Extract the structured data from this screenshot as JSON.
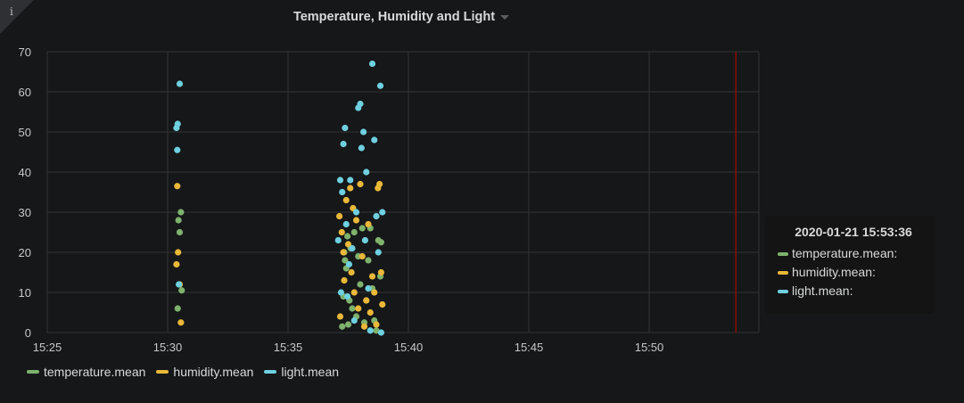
{
  "panel": {
    "title": "Temperature, Humidity and Light",
    "info_icon": "info-icon"
  },
  "colors": {
    "temperature": "#7eb26d",
    "humidity": "#eab839",
    "light": "#6ed0e0",
    "marker": "#890f02",
    "grid": "#333333"
  },
  "tooltip": {
    "time": "2020-01-21 15:53:36",
    "rows": [
      {
        "label": "temperature.mean:"
      },
      {
        "label": "humidity.mean:"
      },
      {
        "label": "light.mean:"
      }
    ]
  },
  "legend": [
    {
      "label": "temperature.mean"
    },
    {
      "label": "humidity.mean"
    },
    {
      "label": "light.mean"
    }
  ],
  "chart_data": {
    "type": "scatter",
    "title": "Temperature, Humidity and Light",
    "x_ticks": [
      "15:25",
      "15:30",
      "15:35",
      "15:40",
      "15:45",
      "15:50"
    ],
    "y_ticks": [
      "0",
      "10",
      "20",
      "30",
      "40",
      "50",
      "60",
      "70"
    ],
    "x_range": [
      "15:25:00",
      "15:54:30"
    ],
    "ylim": [
      0,
      70
    ],
    "grid": true,
    "legend_position": "bottom",
    "marker_time": "15:53:36",
    "series": [
      {
        "name": "temperature.mean",
        "color": "#7eb26d",
        "points": [
          [
            "15:30:25",
            6
          ],
          [
            "15:30:27",
            28
          ],
          [
            "15:30:30",
            25
          ],
          [
            "15:30:33",
            30
          ],
          [
            "15:30:35",
            10.5
          ],
          [
            "15:37:15",
            1.5
          ],
          [
            "15:37:18",
            9
          ],
          [
            "15:37:20",
            20
          ],
          [
            "15:37:22",
            18
          ],
          [
            "15:37:25",
            16
          ],
          [
            "15:37:28",
            24
          ],
          [
            "15:37:30",
            2
          ],
          [
            "15:37:33",
            8
          ],
          [
            "15:37:36",
            21
          ],
          [
            "15:37:40",
            6
          ],
          [
            "15:37:45",
            25
          ],
          [
            "15:37:50",
            4
          ],
          [
            "15:37:55",
            19
          ],
          [
            "15:38:00",
            12
          ],
          [
            "15:38:05",
            26
          ],
          [
            "15:38:10",
            2.5
          ],
          [
            "15:38:15",
            8
          ],
          [
            "15:38:20",
            18
          ],
          [
            "15:38:25",
            26
          ],
          [
            "15:38:30",
            11
          ],
          [
            "15:38:35",
            3
          ],
          [
            "15:38:40",
            0.5
          ],
          [
            "15:38:45",
            23
          ],
          [
            "15:38:50",
            14
          ],
          [
            "15:38:52",
            22.5
          ]
        ]
      },
      {
        "name": "humidity.mean",
        "color": "#eab839",
        "points": [
          [
            "15:30:22",
            17
          ],
          [
            "15:30:24",
            36.5
          ],
          [
            "15:30:26",
            20
          ],
          [
            "15:30:30",
            12
          ],
          [
            "15:30:33",
            2.5
          ],
          [
            "15:37:08",
            29
          ],
          [
            "15:37:10",
            4
          ],
          [
            "15:37:14",
            25
          ],
          [
            "15:37:18",
            20
          ],
          [
            "15:37:20",
            13
          ],
          [
            "15:37:25",
            33
          ],
          [
            "15:37:30",
            22
          ],
          [
            "15:37:35",
            36
          ],
          [
            "15:37:38",
            15
          ],
          [
            "15:37:42",
            31
          ],
          [
            "15:37:45",
            10
          ],
          [
            "15:37:50",
            28
          ],
          [
            "15:37:55",
            6
          ],
          [
            "15:38:00",
            37
          ],
          [
            "15:38:05",
            19
          ],
          [
            "15:38:10",
            1.5
          ],
          [
            "15:38:15",
            8
          ],
          [
            "15:38:20",
            27
          ],
          [
            "15:38:25",
            5
          ],
          [
            "15:38:30",
            14
          ],
          [
            "15:38:35",
            10
          ],
          [
            "15:38:40",
            2
          ],
          [
            "15:38:44",
            36
          ],
          [
            "15:38:48",
            37
          ],
          [
            "15:38:52",
            15
          ],
          [
            "15:38:55",
            7
          ]
        ]
      },
      {
        "name": "light.mean",
        "color": "#6ed0e0",
        "points": [
          [
            "15:30:22",
            51
          ],
          [
            "15:30:25",
            52
          ],
          [
            "15:30:24",
            45.5
          ],
          [
            "15:30:30",
            62
          ],
          [
            "15:30:28",
            12
          ],
          [
            "15:37:05",
            23
          ],
          [
            "15:37:10",
            38
          ],
          [
            "15:37:12",
            10
          ],
          [
            "15:37:15",
            35
          ],
          [
            "15:37:18",
            47
          ],
          [
            "15:37:22",
            51
          ],
          [
            "15:37:25",
            27
          ],
          [
            "15:37:28",
            9
          ],
          [
            "15:37:32",
            17
          ],
          [
            "15:37:35",
            38
          ],
          [
            "15:37:40",
            21
          ],
          [
            "15:37:45",
            3
          ],
          [
            "15:37:50",
            30
          ],
          [
            "15:37:55",
            56
          ],
          [
            "15:38:00",
            57
          ],
          [
            "15:38:03",
            46
          ],
          [
            "15:38:08",
            50
          ],
          [
            "15:38:12",
            23
          ],
          [
            "15:38:15",
            40
          ],
          [
            "15:38:20",
            11
          ],
          [
            "15:38:25",
            0.5
          ],
          [
            "15:38:30",
            67
          ],
          [
            "15:38:35",
            48
          ],
          [
            "15:38:40",
            29
          ],
          [
            "15:38:45",
            20
          ],
          [
            "15:38:50",
            61.5
          ],
          [
            "15:38:52",
            0
          ],
          [
            "15:38:55",
            30
          ]
        ]
      }
    ]
  }
}
